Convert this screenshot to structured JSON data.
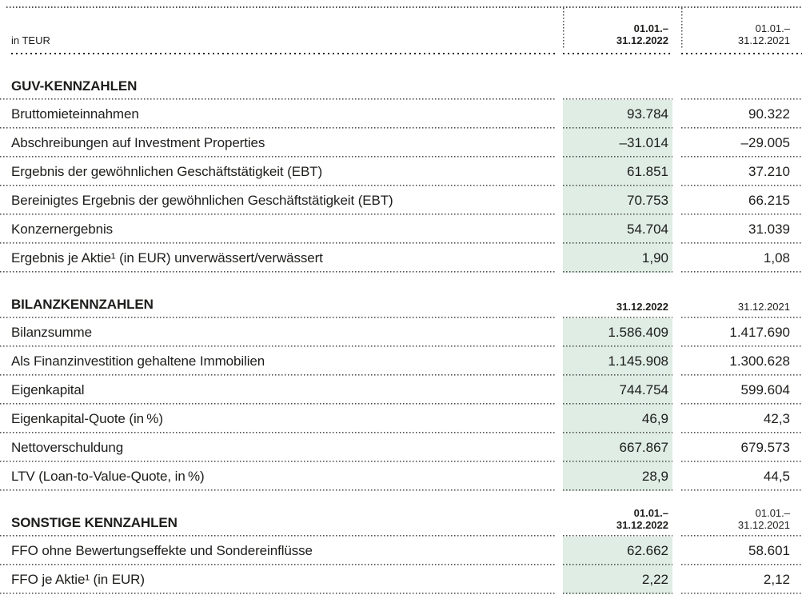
{
  "page": {
    "unit_label": "in TEUR"
  },
  "header": {
    "col2022": [
      "01.01.–",
      "31.12.2022"
    ],
    "col2021": [
      "01.01.–",
      "31.12.2021"
    ]
  },
  "colors": {
    "highlight": "#dfede4",
    "text": "#1d1d1b"
  },
  "sections": [
    {
      "title": "GUV-KENNZAHLEN",
      "header2022": [
        "",
        ""
      ],
      "header2021": [
        "",
        ""
      ],
      "rows": [
        {
          "label": "Bruttomieteinnahmen",
          "v2022": "93.784",
          "v2021": "90.322"
        },
        {
          "label": "Abschreibungen auf Investment Properties",
          "v2022": "–31.014",
          "v2021": "–29.005"
        },
        {
          "label": "Ergebnis der gewöhnlichen Geschäftstätigkeit (EBT)",
          "v2022": "61.851",
          "v2021": "37.210"
        },
        {
          "label": "Bereinigtes Ergebnis der gewöhnlichen Geschäftstätigkeit (EBT)",
          "v2022": "70.753",
          "v2021": "66.215"
        },
        {
          "label": "Konzernergebnis",
          "v2022": "54.704",
          "v2021": "31.039"
        },
        {
          "label": "Ergebnis je Aktie¹ (in EUR) unverwässert/verwässert",
          "v2022": "1,90",
          "v2021": "1,08"
        }
      ]
    },
    {
      "title": "BILANZKENNZAHLEN",
      "header2022": [
        "",
        "31.12.2022"
      ],
      "header2021": [
        "",
        "31.12.2021"
      ],
      "rows": [
        {
          "label": "Bilanzsumme",
          "v2022": "1.586.409",
          "v2021": "1.417.690"
        },
        {
          "label": "Als Finanzinvestition gehaltene Immobilien",
          "v2022": "1.145.908",
          "v2021": "1.300.628"
        },
        {
          "label": "Eigenkapital",
          "v2022": "744.754",
          "v2021": "599.604"
        },
        {
          "label": "Eigenkapital-Quote (in %)",
          "v2022": "46,9",
          "v2021": "42,3"
        },
        {
          "label": "Nettoverschuldung",
          "v2022": "667.867",
          "v2021": "679.573"
        },
        {
          "label": "LTV (Loan-to-Value-Quote, in %)",
          "v2022": "28,9",
          "v2021": "44,5"
        }
      ]
    },
    {
      "title": "SONSTIGE KENNZAHLEN",
      "header2022": [
        "01.01.–",
        "31.12.2022"
      ],
      "header2021": [
        "01.01.–",
        "31.12.2021"
      ],
      "rows": [
        {
          "label": "FFO ohne Bewertungseffekte und Sondereinflüsse",
          "v2022": "62.662",
          "v2021": "58.601"
        },
        {
          "label": "FFO je Aktie¹ (in EUR)",
          "v2022": "2,22",
          "v2021": "2,12"
        }
      ]
    }
  ]
}
